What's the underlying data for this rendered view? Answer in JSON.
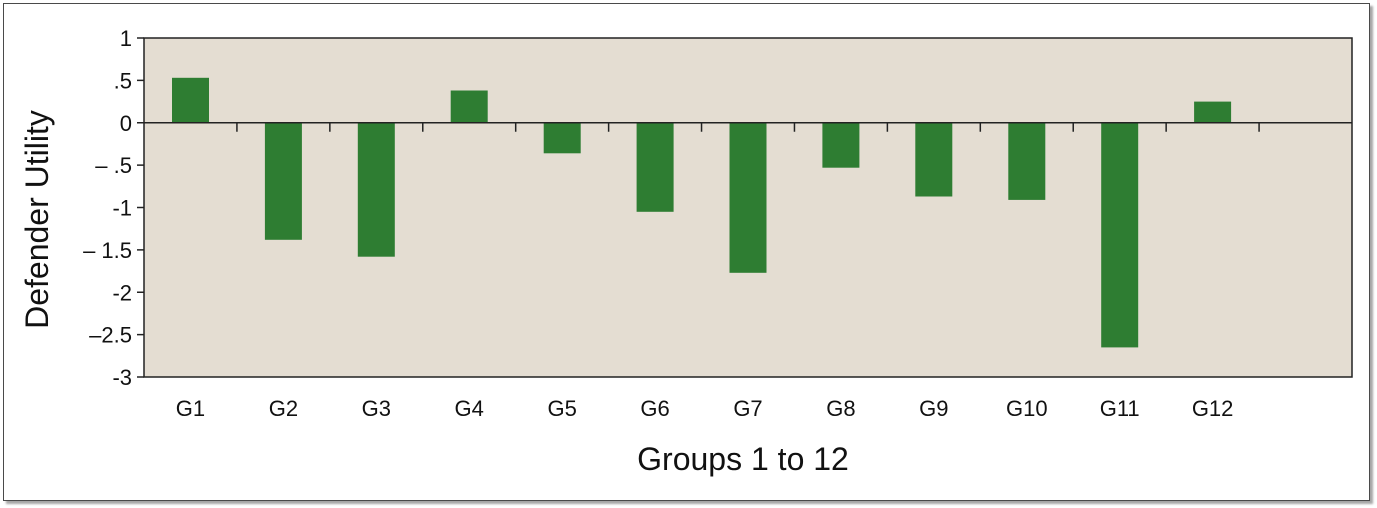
{
  "chart_data": {
    "type": "bar",
    "categories": [
      "G1",
      "G2",
      "G3",
      "G4",
      "G5",
      "G6",
      "G7",
      "G8",
      "G9",
      "G10",
      "G11",
      "G12"
    ],
    "values": [
      0.53,
      -1.38,
      -1.58,
      0.38,
      -0.36,
      -1.05,
      -1.77,
      -0.53,
      -0.87,
      -0.91,
      -2.65,
      0.25
    ],
    "title": "",
    "xlabel": "Groups 1 to 12",
    "ylabel": "Defender Utility",
    "ylim": [
      -3,
      1
    ],
    "ytick_values": [
      1,
      0.5,
      0,
      -0.5,
      -1,
      -1.5,
      -2,
      -2.5,
      -3
    ],
    "ytick_labels": [
      "1",
      ".5",
      "0",
      "– .5",
      "-1",
      "– 1.5",
      "-2",
      "–2.5",
      "-3"
    ],
    "grid": false,
    "legend": "none",
    "colors": {
      "bar": "#2e7d32",
      "plot_bg": "#e4ddd2",
      "axis": "#222222"
    }
  }
}
